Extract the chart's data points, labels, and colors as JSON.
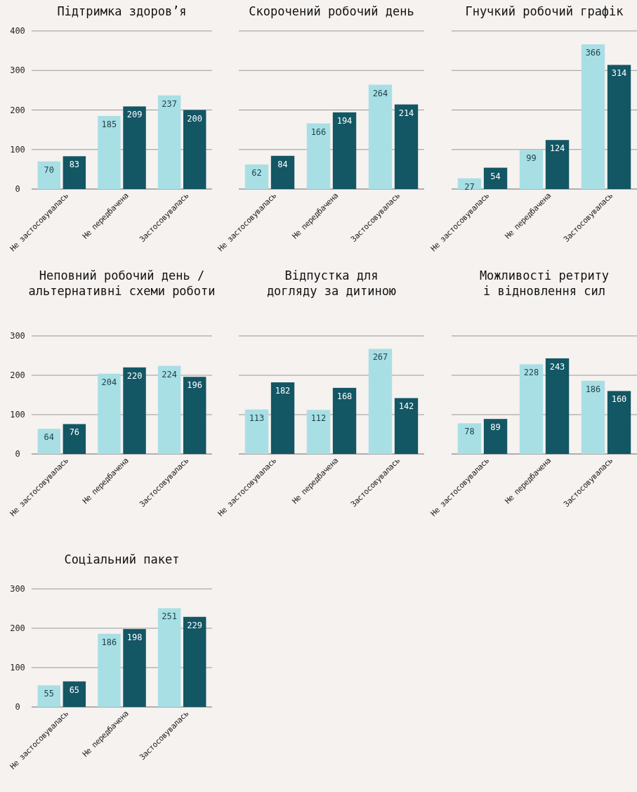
{
  "chart_data": [
    {
      "type": "bar",
      "title": "Підтримка здоров’я",
      "categories": [
        "Не застосовувалась",
        "Не передбачена",
        "Застосовувалась"
      ],
      "series": [
        {
          "color": "#a8dfe5",
          "values": [
            70,
            185,
            237
          ]
        },
        {
          "color": "#135664",
          "values": [
            83,
            209,
            200
          ]
        }
      ],
      "ylim": [
        0,
        400
      ],
      "yticks": [
        0,
        100,
        200,
        300,
        400
      ],
      "grid": "y",
      "data_labels": true
    },
    {
      "type": "bar",
      "title": "Скорочений робочий день",
      "categories": [
        "Не застосовувалась",
        "Не передбачена",
        "Застосовувалась"
      ],
      "series": [
        {
          "color": "#a8dfe5",
          "values": [
            62,
            166,
            264
          ]
        },
        {
          "color": "#135664",
          "values": [
            84,
            194,
            214
          ]
        }
      ],
      "ylim": [
        0,
        400
      ],
      "yticks": [
        0,
        100,
        200,
        300,
        400
      ],
      "grid": "y",
      "data_labels": true,
      "tick_labels": "x"
    },
    {
      "type": "bar",
      "title": "Гнучкий робочий графік",
      "categories": [
        "Не застосовувалась",
        "Не передбачена",
        "Застосовувалась"
      ],
      "series": [
        {
          "color": "#a8dfe5",
          "values": [
            27,
            99,
            366
          ]
        },
        {
          "color": "#135664",
          "values": [
            54,
            124,
            314
          ]
        }
      ],
      "ylim": [
        0,
        400
      ],
      "yticks": [
        0,
        100,
        200,
        300,
        400
      ],
      "grid": "y",
      "data_labels": true,
      "tick_labels": "x"
    },
    {
      "type": "bar",
      "title": "Неповний робочий день /\nальтернативні схеми роботи",
      "categories": [
        "Не застосовувалась",
        "Не передбачена",
        "Застосовувалась"
      ],
      "series": [
        {
          "color": "#a8dfe5",
          "values": [
            64,
            204,
            224
          ]
        },
        {
          "color": "#135664",
          "values": [
            76,
            220,
            196
          ]
        }
      ],
      "ylim": [
        0,
        300
      ],
      "yticks": [
        0,
        100,
        200,
        300
      ],
      "grid": "y",
      "data_labels": true
    },
    {
      "type": "bar",
      "title": "Відпустка для\nдогляду за дитиною",
      "categories": [
        "Не застосовувалась",
        "Не передбачена",
        "Застосовувалась"
      ],
      "series": [
        {
          "color": "#a8dfe5",
          "values": [
            113,
            112,
            267
          ]
        },
        {
          "color": "#135664",
          "values": [
            182,
            168,
            142
          ]
        }
      ],
      "ylim": [
        0,
        300
      ],
      "yticks": [
        0,
        100,
        200,
        300
      ],
      "grid": "y",
      "data_labels": true,
      "tick_labels": "x"
    },
    {
      "type": "bar",
      "title": "Можливості ретриту\nі відновлення сил",
      "categories": [
        "Не застосовувалась",
        "Не передбачена",
        "Застосовувалась"
      ],
      "series": [
        {
          "color": "#a8dfe5",
          "values": [
            78,
            228,
            186
          ]
        },
        {
          "color": "#135664",
          "values": [
            89,
            243,
            160
          ]
        }
      ],
      "ylim": [
        0,
        300
      ],
      "yticks": [
        0,
        100,
        200,
        300
      ],
      "grid": "y",
      "data_labels": true,
      "tick_labels": "x"
    },
    {
      "type": "bar",
      "title": "Соціальний пакет",
      "categories": [
        "Не застосовувалась",
        "Не передбачена",
        "Застосовувалась"
      ],
      "series": [
        {
          "color": "#a8dfe5",
          "values": [
            55,
            186,
            251
          ]
        },
        {
          "color": "#135664",
          "values": [
            65,
            198,
            229
          ]
        }
      ],
      "ylim": [
        0,
        300
      ],
      "yticks": [
        0,
        100,
        200,
        300
      ],
      "grid": "y",
      "data_labels": true
    }
  ]
}
